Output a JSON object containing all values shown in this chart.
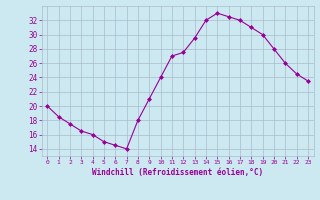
{
  "x": [
    0,
    1,
    2,
    3,
    4,
    5,
    6,
    7,
    8,
    9,
    10,
    11,
    12,
    13,
    14,
    15,
    16,
    17,
    18,
    19,
    20,
    21,
    22,
    23
  ],
  "y": [
    20,
    18.5,
    17.5,
    16.5,
    16,
    15,
    14.5,
    14,
    18,
    21,
    24,
    27,
    27.5,
    29.5,
    32,
    33,
    32.5,
    32,
    31,
    30,
    28,
    26,
    24.5,
    23.5
  ],
  "line_color": "#990099",
  "marker": "D",
  "marker_size": 2,
  "bg_color": "#cce8f0",
  "grid_color": "#aabbcc",
  "xlabel": "Windchill (Refroidissement éolien,°C)",
  "xlabel_color": "#990099",
  "tick_color": "#990099",
  "ylim": [
    13,
    34
  ],
  "xlim": [
    -0.5,
    23.5
  ],
  "yticks": [
    14,
    16,
    18,
    20,
    22,
    24,
    26,
    28,
    30,
    32
  ],
  "xticks": [
    0,
    1,
    2,
    3,
    4,
    5,
    6,
    7,
    8,
    9,
    10,
    11,
    12,
    13,
    14,
    15,
    16,
    17,
    18,
    19,
    20,
    21,
    22,
    23
  ]
}
